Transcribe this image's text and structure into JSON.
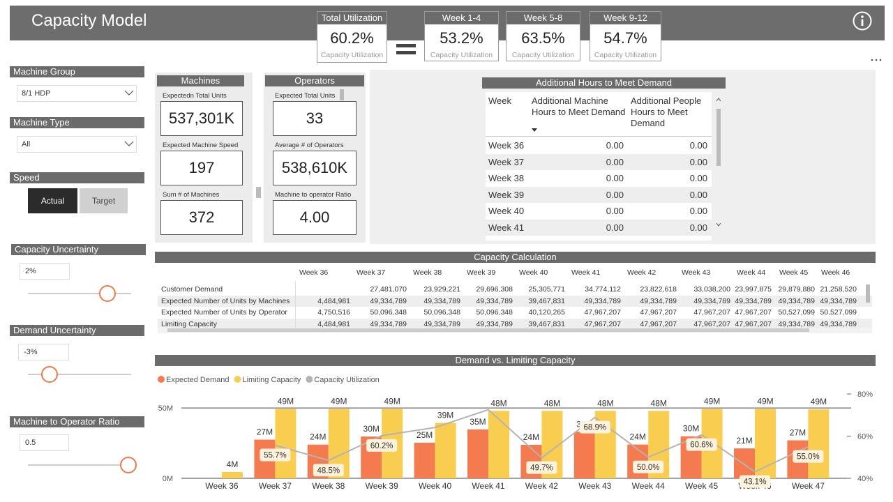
{
  "header": {
    "title": "Capacity Model"
  },
  "kpis": [
    {
      "title": "Total Utilization",
      "value": "60.2%",
      "caption": "Capacity Utilization"
    },
    {
      "title": "Week 1-4",
      "value": "53.2%",
      "caption": "Capacity Utilization"
    },
    {
      "title": "Week 5-8",
      "value": "63.5%",
      "caption": "Capacity Utilization"
    },
    {
      "title": "Week 9-12",
      "value": "54.7%",
      "caption": "Capacity Utilization"
    }
  ],
  "slicers": [
    {
      "label": "Machine Group",
      "value": "8/1 HDP"
    },
    {
      "label": "Machine Type",
      "value": "All"
    },
    {
      "label": "Speed",
      "options": [
        "Actual",
        "Target"
      ]
    },
    {
      "label": "Capacity Uncertainty",
      "value": "2%"
    },
    {
      "label": "Demand Uncertainty",
      "value": "-3%"
    },
    {
      "label": "Machine to Operator Ratio",
      "value": "0.5"
    }
  ],
  "machines": {
    "title": "Machines",
    "cards": [
      {
        "label": "Expectedn Total Units",
        "value": "537,301K"
      },
      {
        "label": "Expected Machine Speed",
        "value": "197"
      },
      {
        "label": "Sum # of Machines",
        "value": "372"
      }
    ]
  },
  "operators": {
    "title": "Operators",
    "cards": [
      {
        "label": "Expected Total Units",
        "value": "33"
      },
      {
        "label": "Average # of Operators",
        "value": "538,610K"
      },
      {
        "label": "Machine to operator Ratio",
        "value": "4.00"
      }
    ]
  },
  "hours_table": {
    "title": "Additional Hours to Meet Demand",
    "columns": [
      "Week",
      "Additional Machine Hours to Meet Demand",
      "Additional People Hours to Meet Demand"
    ],
    "rows": [
      [
        "Week 36",
        "0.00",
        "0.00"
      ],
      [
        "Week 37",
        "0.00",
        "0.00"
      ],
      [
        "Week 38",
        "0.00",
        "0.00"
      ],
      [
        "Week 39",
        "0.00",
        "0.00"
      ],
      [
        "Week 40",
        "0.00",
        "0.00"
      ],
      [
        "Week 41",
        "0.00",
        "0.00"
      ]
    ]
  },
  "capacity_table": {
    "title": "Capacity Calculation",
    "columns": [
      "Week 36",
      "Week 37",
      "Week 38",
      "Week 39",
      "Week 40",
      "Week 41",
      "Week 42",
      "Week 43",
      "Week 44",
      "Week 45",
      "Week 46"
    ],
    "rows": [
      {
        "label": "Customer Demand",
        "cells": [
          null,
          "27,481,070",
          "23,929,221",
          "29,696,308",
          "25,305,771",
          "34,774,112",
          "23,822,618",
          "33,038,200",
          "23,997,875",
          "29,879,880",
          "21,258,520"
        ]
      },
      {
        "label": "Expected Number of Units by Machines",
        "cells": [
          "4,484,981",
          "49,334,789",
          "49,334,789",
          "49,334,789",
          "39,467,831",
          "49,334,789",
          "49,334,789",
          "49,334,789",
          "49,334,789",
          "49,334,789",
          "49,334,789"
        ]
      },
      {
        "label": "Expected Number of Units by Operator",
        "cells": [
          "4,750,516",
          "50,096,348",
          "50,096,348",
          "50,096,348",
          "40,120,265",
          "47,967,207",
          "47,967,207",
          "47,967,207",
          "47,967,207",
          "50,527,099",
          "50,527,099"
        ]
      },
      {
        "label": "Limiting Capacity",
        "cells": [
          "4,484,981",
          "49,334,789",
          "49,334,789",
          "49,334,789",
          "39,467,831",
          "47,967,207",
          "47,967,207",
          "47,967,207",
          "47,967,207",
          "49,334,789",
          "49,334,789"
        ]
      }
    ]
  },
  "chart_data": {
    "type": "bar",
    "title": "Demand vs. Limiting Capacity",
    "categories": [
      "Week 36",
      "Week 37",
      "Week 38",
      "Week 39",
      "Week 40",
      "Week 41",
      "Week 42",
      "Week 43",
      "Week 44",
      "Week 45",
      "Week 46",
      "Week 47"
    ],
    "series": [
      {
        "name": "Expected Demand",
        "type": "bar",
        "color": "#f47b4f",
        "values": [
          null,
          27481070,
          23929221,
          29696308,
          25305771,
          34774112,
          23822618,
          33038200,
          23997875,
          29879880,
          21258520,
          27000000
        ],
        "value_labels": [
          null,
          "27M",
          "24M",
          "30M",
          "25M",
          "35M",
          "24M",
          "33M",
          "24M",
          "30M",
          "21M",
          "27M"
        ]
      },
      {
        "name": "Limiting Capacity",
        "type": "bar",
        "color": "#f9cd50",
        "values": [
          4484981,
          49334789,
          49334789,
          49334789,
          39467831,
          47967207,
          47967207,
          47967207,
          47967207,
          49334789,
          49334789,
          49000000
        ],
        "value_labels": [
          "4M",
          "49M",
          "49M",
          "49M",
          "39M",
          "48M",
          "48M",
          "48M",
          "48M",
          "49M",
          "49M",
          "49M"
        ]
      },
      {
        "name": "Capacity Utilization",
        "type": "line",
        "axis": "y2",
        "color": "#b3b3b3",
        "values": [
          null,
          55.7,
          48.5,
          60.2,
          64.1,
          72.5,
          49.7,
          68.9,
          50.0,
          60.6,
          43.1,
          55.0
        ],
        "value_labels": [
          null,
          "55.7%",
          "48.5%",
          "60.2%",
          null,
          null,
          "49.7%",
          "68.9%",
          "50.0%",
          "60.6%",
          "43.1%",
          "55.0%"
        ]
      }
    ],
    "ylim": [
      0,
      60000000
    ],
    "yticks": [
      {
        "value": 0,
        "label": "0M"
      },
      {
        "value": 50000000,
        "label": "50M"
      }
    ],
    "y2lim": [
      40,
      80
    ],
    "y2ticks": [
      {
        "value": 40,
        "label": "40%"
      },
      {
        "value": 60,
        "label": "60%"
      },
      {
        "value": 80,
        "label": "80%"
      }
    ],
    "grid": true,
    "legend": "top-left"
  }
}
